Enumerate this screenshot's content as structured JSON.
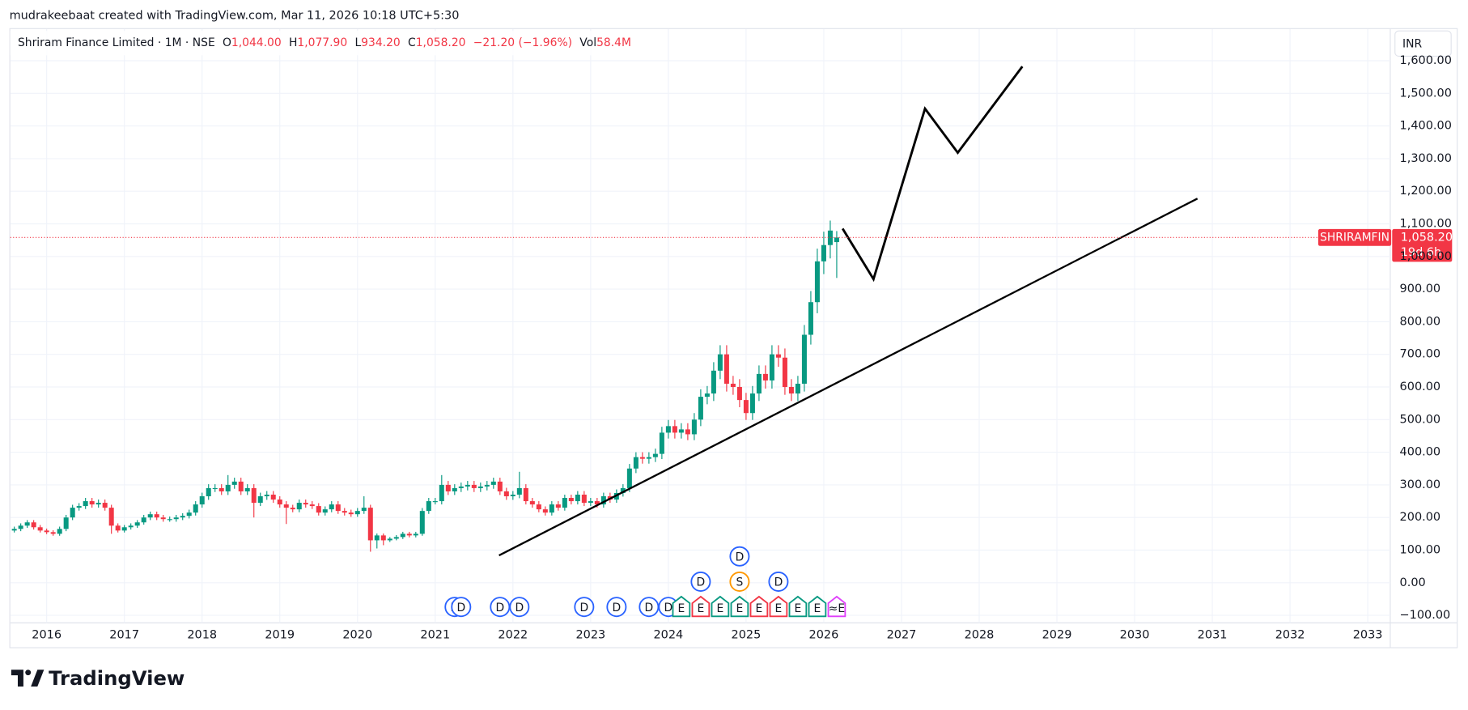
{
  "header": {
    "attribution": "mudrakeebaat created with TradingView.com, Mar 11, 2026 10:18 UTC+5:30",
    "currency": "INR",
    "brand": "TradingView"
  },
  "chart_data": {
    "type": "candlestick",
    "title": "Shriram Finance Limited · 1M · NSE",
    "legend_values": [
      {
        "key": "O",
        "label": "1,044.00"
      },
      {
        "key": "H",
        "label": "1,077.90"
      },
      {
        "key": "L",
        "label": "934.20"
      },
      {
        "key": "C",
        "label": "1,058.20"
      }
    ],
    "change_label": "−21.20 (−1.96%)",
    "volume": {
      "key": "Vol",
      "label": "58.4M"
    },
    "up_color": "#089981",
    "down_color": "#f23645",
    "grid": true,
    "x": [
      "2015-08",
      "2015-09",
      "2015-10",
      "2015-11",
      "2015-12",
      "2016-01",
      "2016-02",
      "2016-03",
      "2016-04",
      "2016-05",
      "2016-06",
      "2016-07",
      "2016-08",
      "2016-09",
      "2016-10",
      "2016-11",
      "2016-12",
      "2017-01",
      "2017-02",
      "2017-03",
      "2017-04",
      "2017-05",
      "2017-06",
      "2017-07",
      "2017-08",
      "2017-09",
      "2017-10",
      "2017-11",
      "2017-12",
      "2018-01",
      "2018-02",
      "2018-03",
      "2018-04",
      "2018-05",
      "2018-06",
      "2018-07",
      "2018-08",
      "2018-09",
      "2018-10",
      "2018-11",
      "2018-12",
      "2019-01",
      "2019-02",
      "2019-03",
      "2019-04",
      "2019-05",
      "2019-06",
      "2019-07",
      "2019-08",
      "2019-09",
      "2019-10",
      "2019-11",
      "2019-12",
      "2020-01",
      "2020-02",
      "2020-03",
      "2020-04",
      "2020-05",
      "2020-06",
      "2020-07",
      "2020-08",
      "2020-09",
      "2020-10",
      "2020-11",
      "2020-12",
      "2021-01",
      "2021-02",
      "2021-03",
      "2021-04",
      "2021-05",
      "2021-06",
      "2021-07",
      "2021-08",
      "2021-09",
      "2021-10",
      "2021-11",
      "2021-12",
      "2022-01",
      "2022-02",
      "2022-03",
      "2022-04",
      "2022-05",
      "2022-06",
      "2022-07",
      "2022-08",
      "2022-09",
      "2022-10",
      "2022-11",
      "2022-12",
      "2023-01",
      "2023-02",
      "2023-03",
      "2023-04",
      "2023-05",
      "2023-06",
      "2023-07",
      "2023-08",
      "2023-09",
      "2023-10",
      "2023-11",
      "2023-12",
      "2024-01",
      "2024-02",
      "2024-03",
      "2024-04",
      "2024-05",
      "2024-06",
      "2024-07",
      "2024-08",
      "2024-09",
      "2024-10",
      "2024-11",
      "2024-12",
      "2025-01",
      "2025-02",
      "2025-03",
      "2025-04",
      "2025-05",
      "2025-06",
      "2025-07",
      "2025-08",
      "2025-09",
      "2025-10",
      "2025-11",
      "2025-12",
      "2026-01",
      "2026-02",
      "2026-03"
    ],
    "open": [
      160,
      165,
      175,
      185,
      170,
      160,
      155,
      150,
      165,
      200,
      230,
      235,
      250,
      240,
      245,
      230,
      175,
      160,
      170,
      175,
      185,
      200,
      210,
      200,
      195,
      195,
      200,
      205,
      215,
      240,
      265,
      290,
      290,
      280,
      300,
      310,
      280,
      290,
      245,
      265,
      270,
      255,
      240,
      230,
      225,
      245,
      240,
      235,
      215,
      225,
      240,
      220,
      215,
      210,
      220,
      230,
      130,
      145,
      130,
      135,
      140,
      150,
      145,
      150,
      220,
      250,
      250,
      300,
      280,
      290,
      295,
      300,
      290,
      295,
      300,
      310,
      280,
      265,
      270,
      290,
      250,
      240,
      225,
      215,
      240,
      230,
      260,
      250,
      270,
      245,
      250,
      240,
      265,
      255,
      275,
      290,
      350,
      385,
      380,
      385,
      395,
      460,
      480,
      460,
      470,
      455,
      500,
      570,
      580,
      650,
      700,
      610,
      600,
      560,
      520,
      580,
      640,
      620,
      700,
      690,
      600,
      580,
      610,
      760,
      860,
      985,
      1035,
      1044
    ],
    "high": [
      172,
      182,
      192,
      192,
      177,
      166,
      161,
      172,
      208,
      239,
      244,
      260,
      260,
      255,
      255,
      239,
      182,
      177,
      182,
      192,
      208,
      218,
      218,
      208,
      203,
      208,
      213,
      224,
      250,
      276,
      302,
      302,
      302,
      330,
      322,
      322,
      302,
      302,
      276,
      281,
      281,
      265,
      250,
      239,
      255,
      255,
      250,
      244,
      234,
      250,
      250,
      229,
      224,
      229,
      265,
      239,
      151,
      151,
      140,
      146,
      156,
      156,
      156,
      229,
      260,
      260,
      330,
      312,
      302,
      307,
      312,
      312,
      307,
      312,
      322,
      322,
      291,
      281,
      340,
      302,
      260,
      250,
      234,
      250,
      250,
      270,
      270,
      281,
      281,
      260,
      260,
      276,
      276,
      286,
      302,
      364,
      400,
      400,
      400,
      411,
      478,
      499,
      499,
      489,
      489,
      520,
      593,
      603,
      676,
      728,
      728,
      634,
      624,
      582,
      603,
      666,
      666,
      728,
      728,
      718,
      624,
      634,
      790,
      894,
      1024,
      1076,
      1110,
      1077.9
    ],
    "low": [
      154,
      158,
      168,
      163,
      154,
      149,
      144,
      144,
      158,
      192,
      221,
      226,
      230,
      230,
      221,
      150,
      154,
      154,
      163,
      168,
      178,
      192,
      192,
      187,
      187,
      187,
      192,
      197,
      206,
      230,
      254,
      278,
      269,
      269,
      288,
      269,
      269,
      200,
      235,
      254,
      245,
      230,
      180,
      216,
      216,
      230,
      226,
      206,
      206,
      216,
      211,
      206,
      202,
      202,
      211,
      95,
      105,
      115,
      125,
      130,
      134,
      139,
      139,
      144,
      211,
      240,
      240,
      269,
      269,
      278,
      283,
      278,
      278,
      283,
      288,
      269,
      254,
      254,
      259,
      240,
      230,
      216,
      206,
      206,
      221,
      221,
      240,
      240,
      235,
      235,
      230,
      230,
      245,
      245,
      264,
      278,
      336,
      365,
      365,
      370,
      379,
      442,
      442,
      442,
      437,
      437,
      480,
      547,
      557,
      624,
      586,
      576,
      538,
      499,
      499,
      557,
      595,
      595,
      662,
      576,
      557,
      557,
      586,
      730,
      826,
      946,
      994,
      934.2
    ],
    "close": [
      165,
      175,
      185,
      170,
      160,
      155,
      150,
      165,
      200,
      230,
      235,
      250,
      240,
      245,
      230,
      175,
      160,
      170,
      175,
      185,
      200,
      210,
      200,
      195,
      195,
      200,
      205,
      215,
      240,
      265,
      290,
      290,
      280,
      300,
      310,
      280,
      290,
      245,
      265,
      270,
      255,
      240,
      230,
      225,
      245,
      240,
      235,
      215,
      225,
      240,
      220,
      215,
      210,
      220,
      230,
      130,
      145,
      130,
      135,
      140,
      150,
      145,
      150,
      220,
      250,
      250,
      300,
      280,
      290,
      295,
      300,
      290,
      295,
      300,
      310,
      280,
      265,
      270,
      290,
      250,
      240,
      225,
      215,
      240,
      230,
      260,
      250,
      270,
      245,
      250,
      240,
      265,
      255,
      275,
      290,
      350,
      385,
      380,
      385,
      395,
      460,
      480,
      460,
      470,
      455,
      500,
      570,
      580,
      650,
      700,
      610,
      600,
      560,
      520,
      580,
      640,
      620,
      700,
      690,
      600,
      580,
      610,
      760,
      860,
      985,
      1035,
      1079.4,
      1058.2
    ],
    "xlim": [
      2015.52,
      2033.29
    ],
    "xticks": [
      2016,
      2017,
      2018,
      2019,
      2020,
      2021,
      2022,
      2023,
      2024,
      2025,
      2026,
      2027,
      2028,
      2029,
      2030,
      2031,
      2032,
      2033
    ],
    "ylim": [
      -123,
      1608
    ],
    "yticks": [
      {
        "value": -100,
        "label": "−100.00"
      },
      {
        "value": 0,
        "label": "0.00"
      },
      {
        "value": 100,
        "label": "100.00"
      },
      {
        "value": 200,
        "label": "200.00"
      },
      {
        "value": 300,
        "label": "300.00"
      },
      {
        "value": 400,
        "label": "400.00"
      },
      {
        "value": 500,
        "label": "500.00"
      },
      {
        "value": 600,
        "label": "600.00"
      },
      {
        "value": 700,
        "label": "700.00"
      },
      {
        "value": 800,
        "label": "800.00"
      },
      {
        "value": 900,
        "label": "900.00"
      },
      {
        "value": 1000,
        "label": "1,000.00"
      },
      {
        "value": 1100,
        "label": "1,100.00"
      },
      {
        "value": 1200,
        "label": "1,200.00"
      },
      {
        "value": 1300,
        "label": "1,300.00"
      },
      {
        "value": 1400,
        "label": "1,400.00"
      },
      {
        "value": 1500,
        "label": "1,500.00"
      },
      {
        "value": 1600,
        "label": "1,600.00"
      }
    ],
    "price_line": {
      "symbol": "SHRIRAMFIN",
      "label": "1,058.20",
      "countdown": "19d 6h"
    },
    "events": [
      {
        "date": "2021-04",
        "label": "D",
        "color": "#2962ff"
      },
      {
        "date": "2021-05",
        "label": "D",
        "color": "#2962ff"
      },
      {
        "date": "2021-11",
        "label": "D",
        "color": "#2962ff"
      },
      {
        "date": "2022-02",
        "label": "D",
        "color": "#2962ff"
      },
      {
        "date": "2022-12",
        "label": "D",
        "color": "#2962ff"
      },
      {
        "date": "2023-05",
        "label": "D",
        "color": "#2962ff"
      },
      {
        "date": "2023-10",
        "label": "D",
        "color": "#2962ff"
      },
      {
        "date": "2024-01",
        "label": "D",
        "color": "#2962ff"
      },
      {
        "date": "2024-03",
        "label": "E",
        "color": "#089981"
      },
      {
        "date": "2024-06",
        "label": "E",
        "color": "#f23645"
      },
      {
        "date": "2024-06",
        "label": "D",
        "color": "#2962ff"
      },
      {
        "date": "2024-09",
        "label": "E",
        "color": "#089981"
      },
      {
        "date": "2024-12",
        "label": "E",
        "color": "#089981"
      },
      {
        "date": "2024-12",
        "label": "S",
        "color": "#ff9800"
      },
      {
        "date": "2024-12",
        "label": "D",
        "color": "#2962ff"
      },
      {
        "date": "2025-03",
        "label": "E",
        "color": "#f23645"
      },
      {
        "date": "2025-06",
        "label": "E",
        "color": "#f23645"
      },
      {
        "date": "2025-06",
        "label": "D",
        "color": "#2962ff"
      },
      {
        "date": "2025-09",
        "label": "E",
        "color": "#089981"
      },
      {
        "date": "2025-12",
        "label": "E",
        "color": "#089981"
      },
      {
        "date": "2026-03",
        "label": "≈E",
        "color": "#e040fb"
      }
    ]
  }
}
